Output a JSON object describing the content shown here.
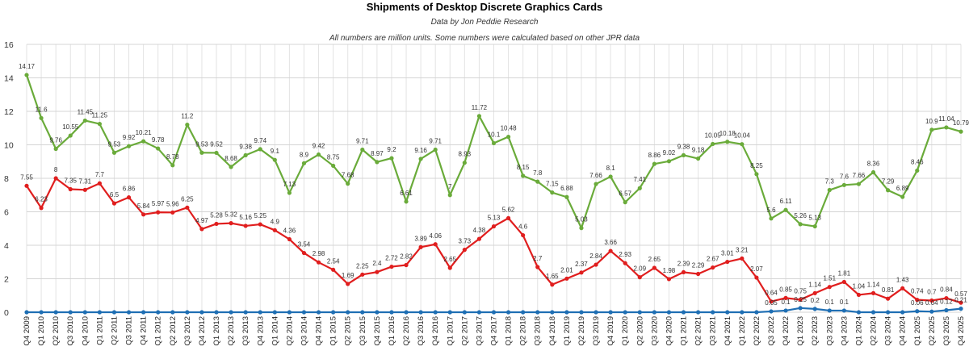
{
  "chart_data": {
    "type": "line",
    "title": "Shipments of Desktop Discrete Graphics Cards",
    "subtitle": "Data by Jon Peddie Research",
    "note": "All numbers are million units. Some numbers were calculated based on other JPR data",
    "ylim": [
      0,
      16
    ],
    "yticks": [
      0,
      2,
      4,
      6,
      8,
      10,
      12,
      14,
      16
    ],
    "grid": true,
    "legend": "none",
    "categories": [
      "Q4 2009",
      "Q1 2010",
      "Q2 2010",
      "Q3 2010",
      "Q4 2010",
      "Q1 2011",
      "Q2 2011",
      "Q3 2011",
      "Q4 2011",
      "Q1 2012",
      "Q2 2012",
      "Q3 2012",
      "Q4 2012",
      "Q1 2013",
      "Q2 2013",
      "Q3 2013",
      "Q4 2013",
      "Q1 2014",
      "Q2 2014",
      "Q3 2014",
      "Q4 2014",
      "Q1 2015",
      "Q2 2015",
      "Q3 2015",
      "Q4 2015",
      "Q1 2016",
      "Q2 2016",
      "Q3 2016",
      "Q4 2016",
      "Q1 2017",
      "Q2 2017",
      "Q3 2017",
      "Q4 2017",
      "Q1 2018",
      "Q2 2018",
      "Q3 2018",
      "Q4 2018",
      "Q1 2019",
      "Q2 2019",
      "Q3 2019",
      "Q4 2019",
      "Q1 2020",
      "Q2 2020",
      "Q3 2020",
      "Q4 2020",
      "Q1 2021",
      "Q2 2021",
      "Q3 2021",
      "Q4 2021",
      "Q1 2022",
      "Q2 2022",
      "Q3 2022",
      "Q4 2022",
      "Q1 2023",
      "Q2 2023",
      "Q3 2023",
      "Q4 2023",
      "Q1 2024",
      "Q2 2024",
      "Q3 2024",
      "Q4 2024",
      "Q1 2025",
      "Q2 2025",
      "Q3 2025",
      "Q4 2025"
    ],
    "series": [
      {
        "color": "#6aab3a",
        "values": [
          14.17,
          11.6,
          9.76,
          10.55,
          11.45,
          11.25,
          9.53,
          9.92,
          10.21,
          9.78,
          8.78,
          11.2,
          9.53,
          9.52,
          8.68,
          9.38,
          9.74,
          9.1,
          7.13,
          8.9,
          9.42,
          8.75,
          7.68,
          9.71,
          8.97,
          9.2,
          6.61,
          9.16,
          9.71,
          7,
          8.93,
          11.72,
          10.1,
          10.48,
          8.15,
          7.8,
          7.15,
          6.88,
          5.03,
          7.66,
          8.1,
          6.57,
          7.41,
          8.86,
          9.02,
          9.38,
          9.18,
          10.05,
          10.18,
          10.04,
          8.25,
          5.6,
          6.11,
          5.26,
          5.13,
          7.3,
          7.6,
          7.66,
          8.36,
          7.29,
          6.89,
          8.46,
          10.9,
          11.04,
          10.79
        ],
        "labels": [
          "14.17",
          "11.6",
          "9.76",
          "10.55",
          "11.45",
          "11.25",
          "9.53",
          "9.92",
          "10.21",
          "9.78",
          "8.78",
          "11.2",
          "9.53",
          "9.52",
          "8.68",
          "9.38",
          "9.74",
          "9.1",
          "7.13",
          "8.9",
          "9.42",
          "8.75",
          "7.68",
          "9.71",
          "8.97",
          "9.2",
          "6.61",
          "9.16",
          "9.71",
          "7",
          "8.93",
          "11.72",
          "10.1",
          "10.48",
          "8.15",
          "7.8",
          "7.15",
          "6.88",
          "5.03",
          "7.66",
          "8.1",
          "6.57",
          "7.41",
          "8.86",
          "9.02",
          "9.38",
          "9.18",
          "10.05",
          "10.18",
          "10.04",
          "8.25",
          "5.6",
          "6.11",
          "5.26",
          "5.13",
          "7.3",
          "7.6",
          "7.66",
          "8.36",
          "7.29",
          "6.89",
          "8.46",
          "10.9",
          "11.04",
          "10.79"
        ]
      },
      {
        "color": "#e01e1e",
        "values": [
          7.55,
          6.23,
          8,
          7.35,
          7.31,
          7.7,
          6.5,
          6.86,
          5.84,
          5.97,
          5.96,
          6.25,
          4.97,
          5.28,
          5.32,
          5.16,
          5.25,
          4.9,
          4.36,
          3.54,
          2.98,
          2.54,
          1.69,
          2.25,
          2.4,
          2.72,
          2.82,
          3.89,
          4.06,
          2.65,
          3.73,
          4.38,
          5.13,
          5.62,
          4.6,
          2.7,
          1.65,
          2.01,
          2.37,
          2.84,
          3.66,
          2.93,
          2.09,
          2.65,
          1.98,
          2.39,
          2.29,
          2.67,
          3.01,
          3.21,
          2.07,
          0.64,
          0.85,
          0.75,
          1.14,
          1.51,
          1.81,
          1.04,
          1.14,
          0.81,
          1.43,
          0.74,
          0.7,
          0.84,
          0.57
        ],
        "labels": [
          "7.55",
          "6.23",
          "8",
          "7.35",
          "7.31",
          "7.7",
          "6.5",
          "6.86",
          "5.84",
          "5.97",
          "5.96",
          "6.25",
          "4.97",
          "5.28",
          "5.32",
          "5.16",
          "5.25",
          "4.9",
          "4.36",
          "3.54",
          "2.98",
          "2.54",
          "1.69",
          "2.25",
          "2.4",
          "2.72",
          "2.82",
          "3.89",
          "4.06",
          "2.65",
          "3.73",
          "4.38",
          "5.13",
          "5.62",
          "4.6",
          "2.7",
          "1.65",
          "2.01",
          "2.37",
          "2.84",
          "3.66",
          "2.93",
          "2.09",
          "2.65",
          "1.98",
          "2.39",
          "2.29",
          "2.67",
          "3.01",
          "3.21",
          "2.07",
          "0.64",
          "0.85",
          "0.75",
          "1.14",
          "1.51",
          "1.81",
          "1.04",
          "1.14",
          "0.81",
          "1.43",
          "0.74",
          "0.7",
          "0.84",
          "0.57"
        ]
      },
      {
        "color": "#1f6fb4",
        "values": [
          0,
          0,
          0,
          0,
          0,
          0,
          0,
          0,
          0,
          0,
          0,
          0,
          0,
          0,
          0,
          0,
          0,
          0,
          0,
          0,
          0,
          0,
          0,
          0,
          0,
          0,
          0,
          0,
          0,
          0,
          0,
          0,
          0,
          0,
          0,
          0,
          0,
          0,
          0,
          0,
          0,
          0,
          0,
          0,
          0,
          0,
          0,
          0,
          0,
          0,
          0,
          0.05,
          0.1,
          0.25,
          0.2,
          0.1,
          0.1,
          0,
          0,
          0,
          0,
          0.06,
          0.04,
          0.12,
          0.21
        ],
        "labels": [
          "",
          "",
          "",
          "",
          "",
          "",
          "",
          "",
          "",
          "",
          "",
          "",
          "",
          "",
          "",
          "",
          "",
          "",
          "",
          "",
          "",
          "",
          "",
          "",
          "",
          "",
          "",
          "",
          "",
          "",
          "",
          "",
          "",
          "",
          "",
          "",
          "",
          "",
          "",
          "",
          "",
          "",
          "",
          "",
          "",
          "",
          "",
          "",
          "",
          "",
          "",
          "0.05",
          "0.1",
          "0.25",
          "0.2",
          "0.1",
          "0.1",
          "",
          "",
          "",
          "",
          "0.06",
          "0.04",
          "0.12",
          "0.21"
        ]
      }
    ]
  }
}
